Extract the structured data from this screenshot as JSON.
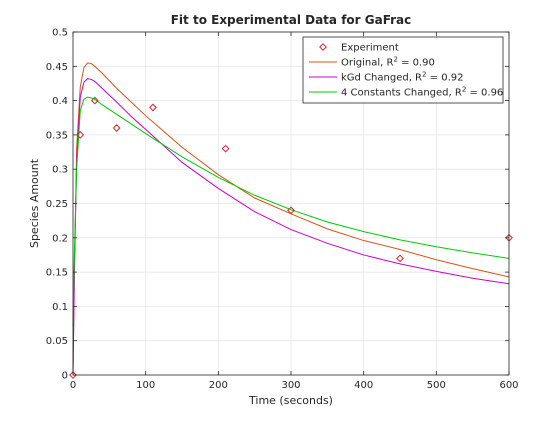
{
  "chart_data": {
    "type": "line",
    "title": "Fit to Experimental Data for GaFrac",
    "xlabel": "Time (seconds)",
    "ylabel": "Species Amount",
    "xlim": [
      0,
      600
    ],
    "ylim": [
      0,
      0.5
    ],
    "xticks": [
      0,
      100,
      200,
      300,
      400,
      500,
      600
    ],
    "yticks": [
      0,
      0.05,
      0.1,
      0.15,
      0.2,
      0.25,
      0.3,
      0.35,
      0.4,
      0.45,
      0.5
    ],
    "xtick_labels": [
      "0",
      "100",
      "200",
      "300",
      "400",
      "500",
      "600"
    ],
    "ytick_labels": [
      "0",
      "0.05",
      "0.1",
      "0.15",
      "0.2",
      "0.25",
      "0.3",
      "0.35",
      "0.4",
      "0.45",
      "0.5"
    ],
    "grid": true,
    "legend_position": "top-right",
    "series": [
      {
        "name": "Experiment",
        "kind": "scatter",
        "marker": "diamond",
        "color": "#d62728",
        "legend_main": "Experiment",
        "legend_sup": "",
        "legend_tail": "",
        "x": [
          0,
          10,
          30,
          60,
          110,
          210,
          300,
          450,
          600
        ],
        "y": [
          0.0,
          0.35,
          0.4,
          0.36,
          0.39,
          0.33,
          0.24,
          0.17,
          0.2
        ]
      },
      {
        "name": "Original",
        "kind": "line",
        "color": "#d95319",
        "legend_main": "Original, R",
        "legend_sup": "2",
        "legend_tail": " = 0.90",
        "x": [
          0,
          2,
          5,
          10,
          15,
          20,
          25,
          30,
          40,
          60,
          80,
          100,
          150,
          200,
          250,
          300,
          350,
          400,
          450,
          500,
          550,
          600
        ],
        "y": [
          0.0,
          0.16,
          0.33,
          0.42,
          0.448,
          0.455,
          0.454,
          0.45,
          0.44,
          0.418,
          0.398,
          0.378,
          0.332,
          0.292,
          0.258,
          0.235,
          0.213,
          0.196,
          0.183,
          0.168,
          0.155,
          0.143
        ]
      },
      {
        "name": "kGd Changed",
        "kind": "line",
        "color": "#cc00cc",
        "legend_main": "kGd Changed, R",
        "legend_sup": "2",
        "legend_tail": " = 0.92",
        "x": [
          0,
          2,
          5,
          10,
          15,
          20,
          25,
          30,
          40,
          60,
          80,
          100,
          150,
          200,
          250,
          300,
          350,
          400,
          450,
          500,
          550,
          600
        ],
        "y": [
          0.0,
          0.15,
          0.31,
          0.405,
          0.427,
          0.432,
          0.431,
          0.428,
          0.418,
          0.398,
          0.377,
          0.358,
          0.31,
          0.272,
          0.238,
          0.212,
          0.192,
          0.175,
          0.162,
          0.151,
          0.141,
          0.133
        ]
      },
      {
        "name": "4 Constants Changed",
        "kind": "line",
        "color": "#00cc00",
        "legend_main": "4 Constants Changed, R",
        "legend_sup": "2",
        "legend_tail": " = 0.96",
        "x": [
          0,
          2,
          5,
          10,
          15,
          20,
          25,
          30,
          40,
          60,
          80,
          100,
          150,
          200,
          250,
          300,
          350,
          400,
          450,
          500,
          550,
          600
        ],
        "y": [
          0.07,
          0.18,
          0.3,
          0.385,
          0.402,
          0.405,
          0.404,
          0.402,
          0.394,
          0.38,
          0.366,
          0.352,
          0.318,
          0.288,
          0.262,
          0.241,
          0.223,
          0.209,
          0.197,
          0.187,
          0.178,
          0.17
        ]
      }
    ]
  }
}
